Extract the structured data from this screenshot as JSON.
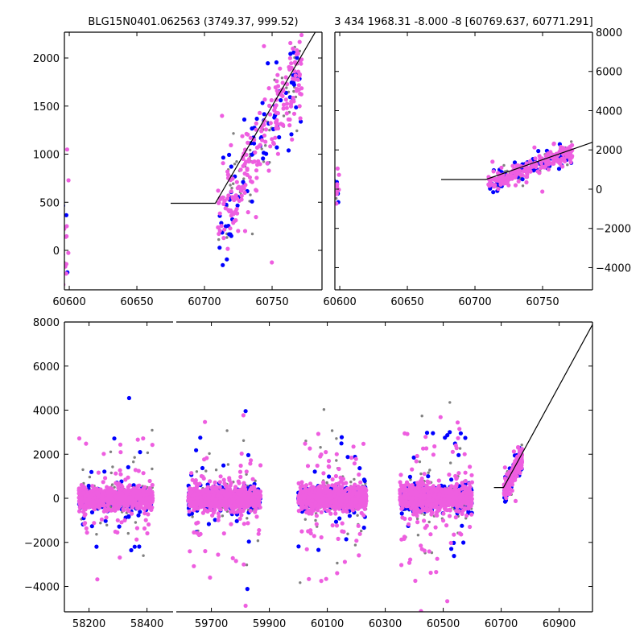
{
  "chart_data": {
    "type": "scatter",
    "colors": {
      "gray": "#808080",
      "blue": "#0000ff",
      "magenta": "#ee5ee0",
      "model": "#000000"
    },
    "model_line": [
      [
        60675,
        490
      ],
      [
        60708,
        490
      ],
      [
        61020,
        8000
      ]
    ],
    "seasons": [
      {
        "x": [
          58165,
          58420
        ],
        "center": 0,
        "core": 260,
        "tail": 1500,
        "tail_frac": 0.1,
        "n": {
          "gray": 220,
          "blue": 200,
          "magenta": 700
        }
      },
      {
        "x": [
          59620,
          59870
        ],
        "center": 0,
        "core": 280,
        "tail": 1600,
        "tail_frac": 0.1,
        "n": {
          "gray": 220,
          "blue": 220,
          "magenta": 700
        }
      },
      {
        "x": [
          60000,
          60235
        ],
        "center": 0,
        "core": 280,
        "tail": 1700,
        "tail_frac": 0.1,
        "n": {
          "gray": 220,
          "blue": 220,
          "magenta": 700
        }
      },
      {
        "x": [
          60350,
          60600
        ],
        "center": 0,
        "core": 300,
        "tail": 1800,
        "tail_frac": 0.12,
        "n": {
          "gray": 220,
          "blue": 260,
          "magenta": 700
        }
      },
      {
        "x": [
          60710,
          60772
        ],
        "trend": [
          300,
          1900
        ],
        "core": 230,
        "tail": 500,
        "tail_frac": 0.15,
        "n": {
          "gray": 60,
          "blue": 80,
          "magenta": 220
        }
      }
    ],
    "panels": [
      {
        "name": "top-left",
        "title": "BLG15N0401.062563 (3749.37, 999.52)",
        "xlim": [
          60596.4,
          60786.9
        ],
        "ylim": [
          -410,
          2268
        ],
        "xticks": [
          60600,
          60650,
          60700,
          60750
        ],
        "yticks": [
          0,
          500,
          1000,
          1500,
          2000
        ],
        "ytick_labels": [
          "0",
          "500",
          "1000",
          "1500",
          "2000"
        ],
        "yaxis_side": "left"
      },
      {
        "name": "top-right",
        "title": "3 434 1968.31 -8.000 -8 [60769.637, 60771.291]",
        "xlim": [
          60596.4,
          60786.9
        ],
        "ylim": [
          -5130,
          8000
        ],
        "xticks": [
          60600,
          60650,
          60700,
          60750
        ],
        "yticks": [
          -4000,
          -2000,
          0,
          2000,
          4000,
          6000,
          8000
        ],
        "ytick_labels": [
          "−4000",
          "−2000",
          "0",
          "2000",
          "4000",
          "6000",
          "8000"
        ],
        "yaxis_side": "right"
      },
      {
        "name": "bottom",
        "title": "",
        "segments": [
          {
            "xlim": [
              58115,
              58490
            ],
            "xticks": [
              58200,
              58400
            ]
          },
          {
            "xlim": [
              59579,
              61015
            ],
            "xticks": [
              59700,
              59900,
              60100,
              60300,
              60500,
              60700,
              60900
            ]
          }
        ],
        "ylim": [
          -5150,
          8000
        ],
        "yticks": [
          -4000,
          -2000,
          0,
          2000,
          4000,
          6000,
          8000
        ],
        "ytick_labels": [
          "−4000",
          "−2000",
          "0",
          "2000",
          "4000",
          "6000",
          "8000"
        ],
        "yaxis_side": "left"
      }
    ]
  }
}
